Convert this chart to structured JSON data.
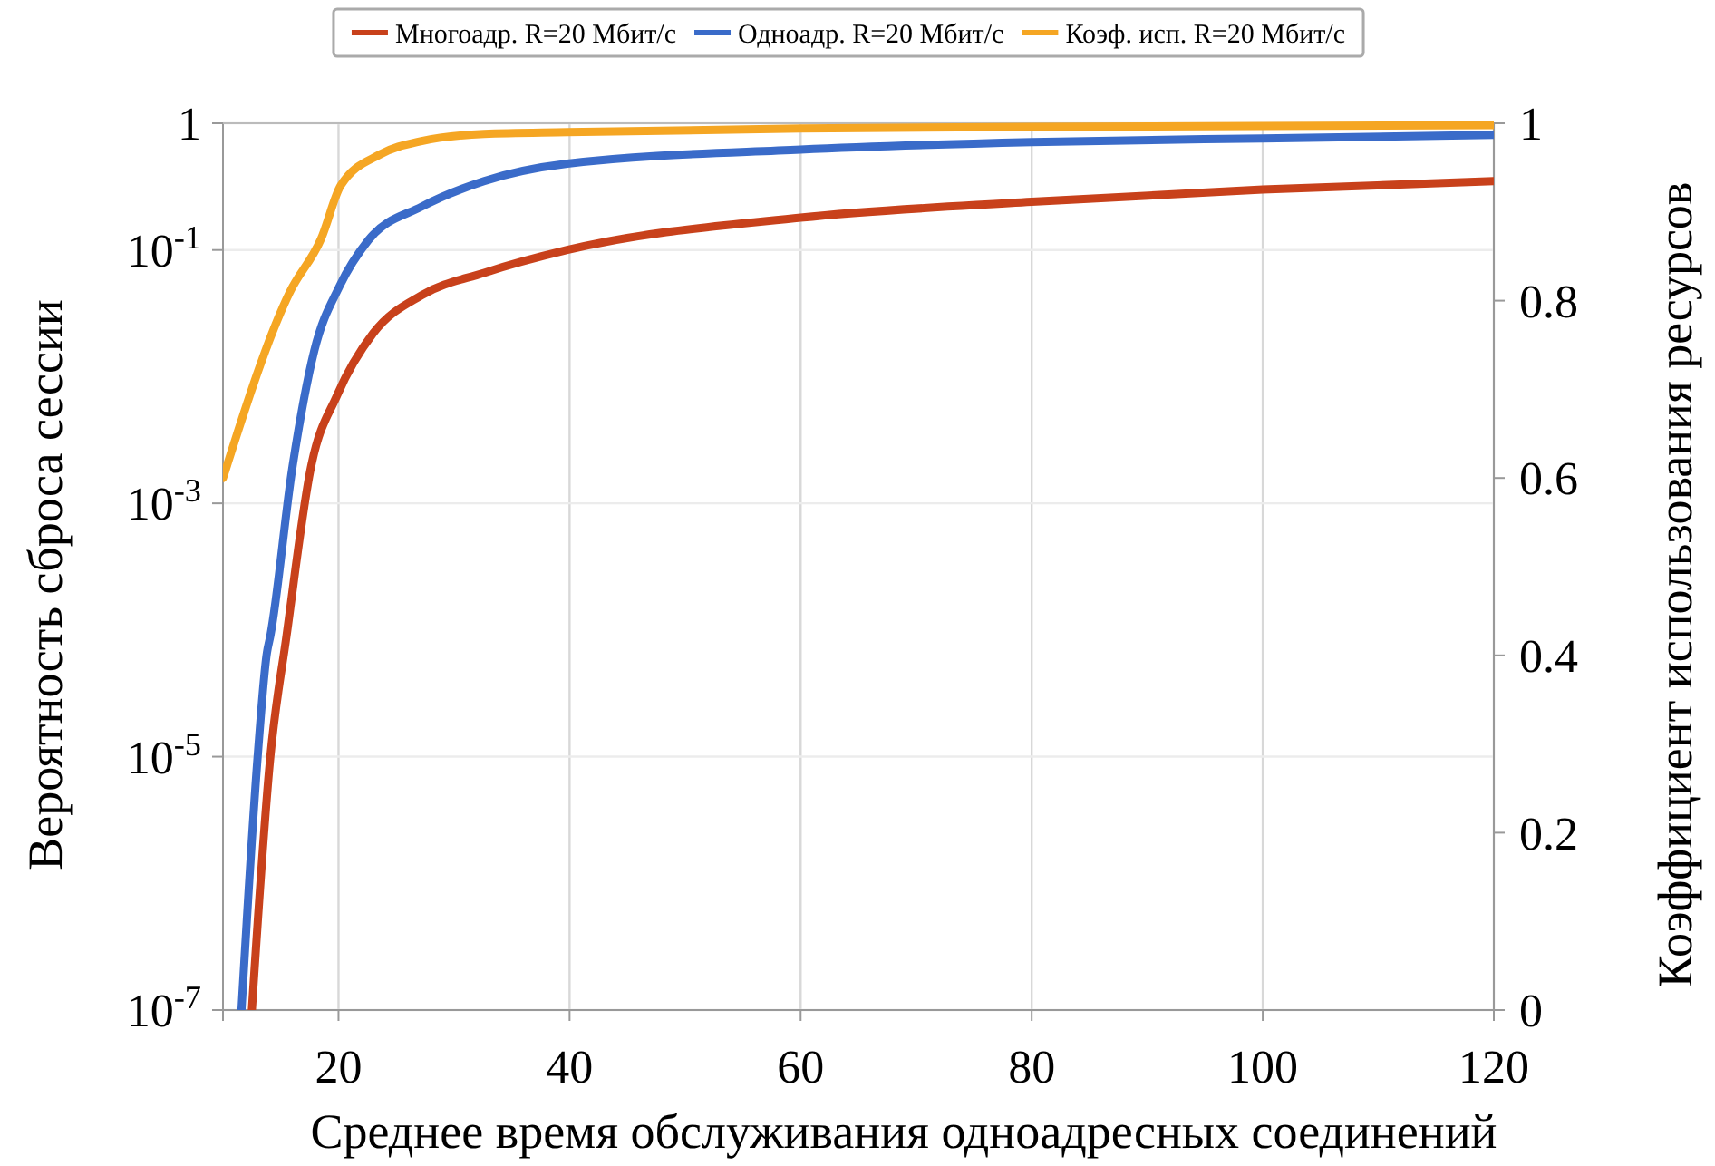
{
  "chart_data": {
    "type": "line",
    "xlabel": "Среднее время обслуживания одноадресных соединений",
    "ylabel": "Вероятность сброса сессии",
    "y2label": "Коэффициент использования ресурсов",
    "xlim": [
      10,
      120
    ],
    "xticks": [
      20,
      40,
      60,
      80,
      100,
      120
    ],
    "ylim": [
      1e-07,
      1
    ],
    "yticks": [
      {
        "value": 1e-07,
        "label": "10$^{-7}$"
      },
      {
        "value": 1e-05,
        "label": "10$^{-5}$"
      },
      {
        "value": 0.001,
        "label": "10$^{-3}$"
      },
      {
        "value": 0.1,
        "label": "10$^{-1}$"
      },
      1
    ],
    "y2lim": [
      0,
      1
    ],
    "y2ticks": [
      0,
      0.2,
      0.4,
      0.6,
      0.8,
      1
    ],
    "log": "y",
    "grid": true,
    "legend": "top",
    "line_style": "solid",
    "marker": "none",
    "series": [
      {
        "name": "Многоадр. R=20 Мбит/с",
        "color": "#c8411b",
        "x": [
          12.5,
          14.1,
          15.5,
          17.6,
          19.9,
          23,
          27.2,
          32.6,
          39.8,
          60,
          80,
          100,
          120
        ],
        "values": [
          1e-07,
          1e-05,
          9e-05,
          0.0019,
          0.0072,
          0.022,
          0.044,
          0.066,
          0.1,
          0.18,
          0.24,
          0.3,
          0.35
        ]
      },
      {
        "name": "Одноадр. R=20 Мбит/с",
        "color": "#3a6bc9",
        "x": [
          11.6,
          13,
          13.8,
          14.1,
          16,
          17.9,
          20.1,
          22.6,
          27.2,
          32.6,
          39.8,
          60,
          80,
          100,
          120
        ],
        "values": [
          1e-07,
          1e-05,
          6.6e-05,
          9e-05,
          0.0019,
          0.016,
          0.052,
          0.12,
          0.22,
          0.35,
          0.48,
          0.62,
          0.71,
          0.76,
          0.81
        ]
      },
      {
        "name": "Коэф. исп. R=20 Мбит/с",
        "color": "#f5a623",
        "axis": "y2",
        "x": [
          10,
          15.8,
          18.5,
          20.2,
          23.6,
          27.2,
          32.6,
          39.8,
          60,
          80,
          100,
          120
        ],
        "values": [
          0.6,
          0.81,
          0.87,
          0.93,
          0.965,
          0.98,
          0.988,
          0.99,
          0.994,
          0.996,
          0.997,
          0.998
        ]
      }
    ]
  }
}
